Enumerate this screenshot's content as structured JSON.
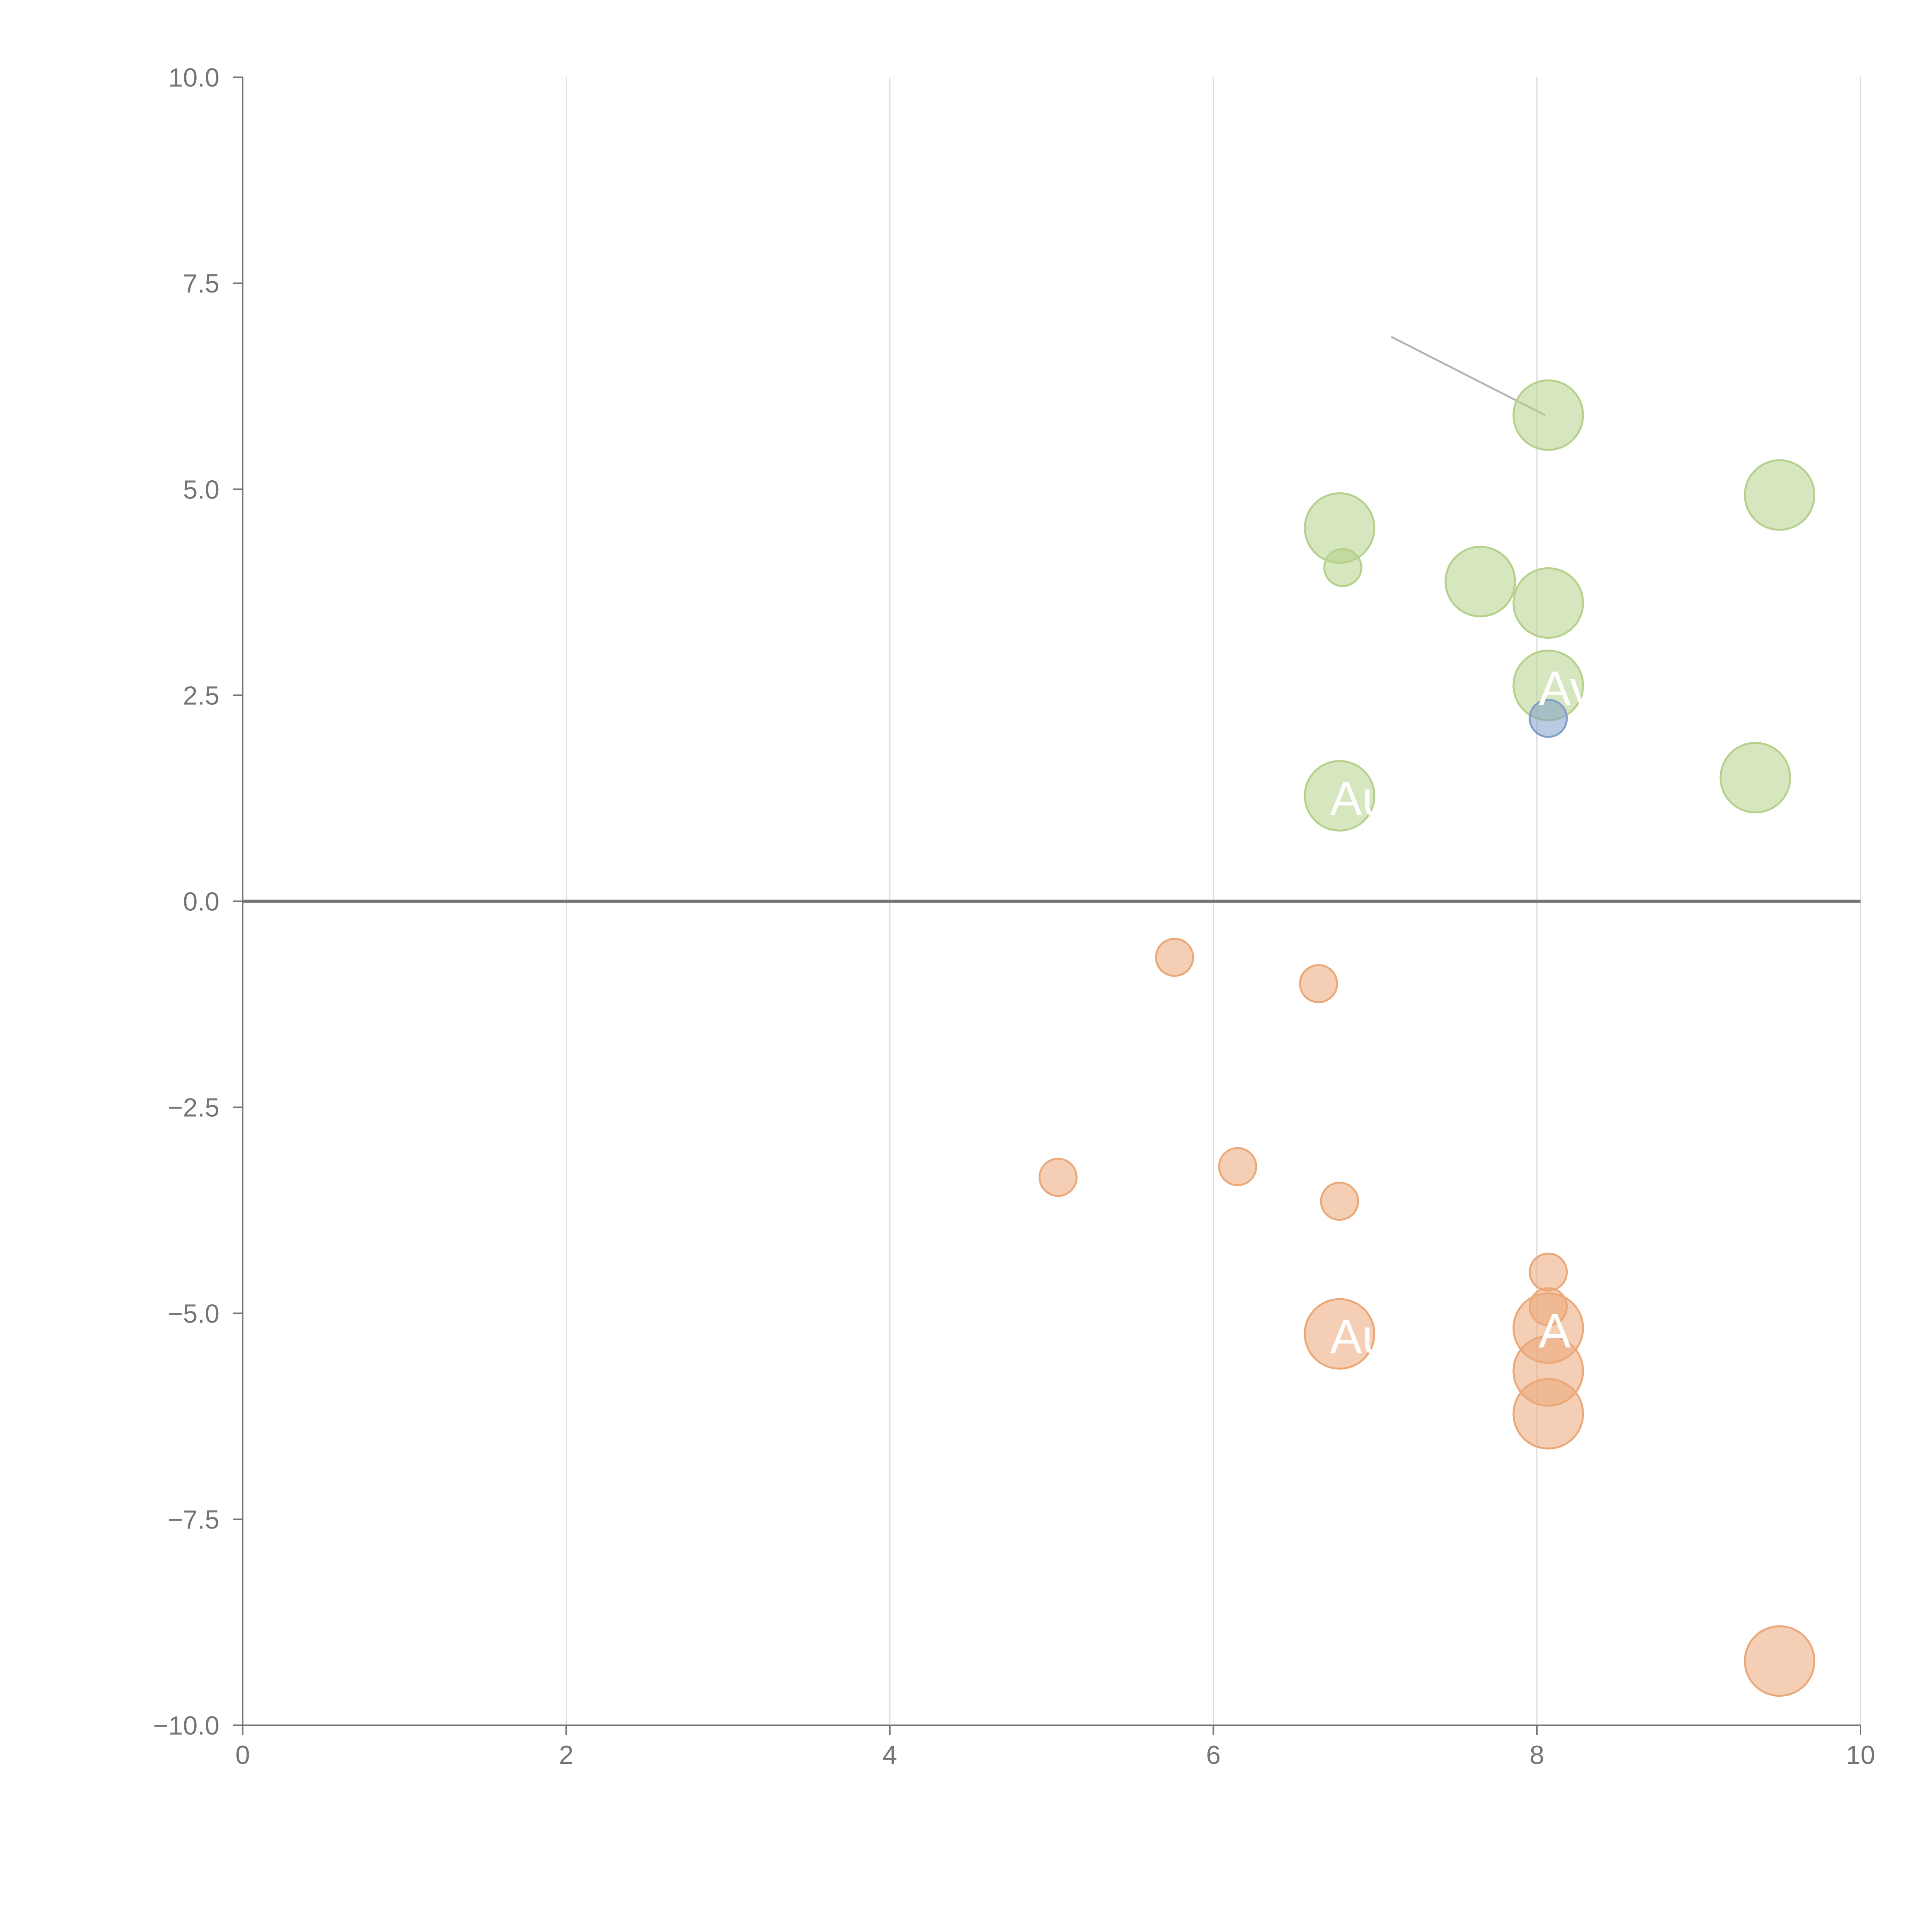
{
  "chart_data": {
    "type": "scatter",
    "title": "",
    "xlabel": "",
    "ylabel": "",
    "xlim": [
      0,
      10
    ],
    "ylim": [
      -10,
      10
    ],
    "x_ticks": [
      "0",
      "2",
      "4",
      "6",
      "8",
      "10"
    ],
    "y_ticks": [
      "10.0",
      "7.5",
      "5.0",
      "2.5",
      "0.0",
      "−2.5",
      "−5.0",
      "−7.5",
      "−10.0"
    ],
    "grid": {
      "vertical": true,
      "horizontal": false,
      "zero_line": true
    },
    "legend": "none",
    "colors": {
      "positive": "#b5d18b",
      "negative": "#eba878",
      "highlight": "#7f9ec8",
      "axis": "#757575",
      "grid": "#dcdcdc"
    },
    "series": [
      {
        "name": "positive",
        "color": "#b5d18b",
        "points": [
          {
            "x": 8.07,
            "y": 5.9,
            "size": 5
          },
          {
            "x": 9.5,
            "y": 4.93,
            "size": 5
          },
          {
            "x": 6.78,
            "y": 4.53,
            "size": 5
          },
          {
            "x": 6.8,
            "y": 4.05,
            "size": 2
          },
          {
            "x": 7.65,
            "y": 3.88,
            "size": 5
          },
          {
            "x": 8.07,
            "y": 3.62,
            "size": 5
          },
          {
            "x": 8.07,
            "y": 2.62,
            "size": 5,
            "label": "Av"
          },
          {
            "x": 6.78,
            "y": 1.28,
            "size": 5,
            "label": "Au"
          },
          {
            "x": 9.35,
            "y": 1.5,
            "size": 5
          }
        ]
      },
      {
        "name": "highlight",
        "color": "#7f9ec8",
        "points": [
          {
            "x": 8.07,
            "y": 2.22,
            "size": 2
          }
        ]
      },
      {
        "name": "negative",
        "color": "#eba878",
        "points": [
          {
            "x": 5.76,
            "y": -0.68,
            "size": 2
          },
          {
            "x": 6.65,
            "y": -1.0,
            "size": 2
          },
          {
            "x": 5.04,
            "y": -3.35,
            "size": 2
          },
          {
            "x": 6.15,
            "y": -3.22,
            "size": 2
          },
          {
            "x": 6.78,
            "y": -3.64,
            "size": 2
          },
          {
            "x": 8.07,
            "y": -4.5,
            "size": 2
          },
          {
            "x": 8.07,
            "y": -4.92,
            "size": 2
          },
          {
            "x": 6.78,
            "y": -5.25,
            "size": 5,
            "label": "Au"
          },
          {
            "x": 8.07,
            "y": -5.18,
            "size": 5,
            "label": "A"
          },
          {
            "x": 8.07,
            "y": -5.7,
            "size": 5
          },
          {
            "x": 8.07,
            "y": -6.22,
            "size": 5
          },
          {
            "x": 9.5,
            "y": -9.22,
            "size": 5
          }
        ]
      }
    ],
    "annotation_lines": [
      {
        "from": [
          7.1,
          6.85
        ],
        "to": [
          8.05,
          5.9
        ],
        "color": "#b4b4b4"
      }
    ]
  }
}
